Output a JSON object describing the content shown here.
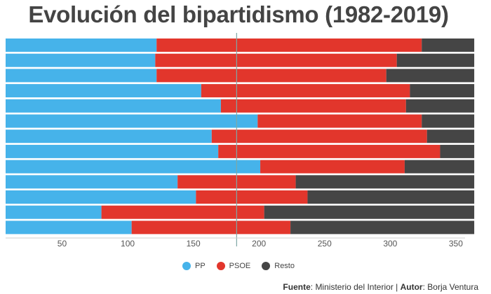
{
  "colors": {
    "pp": "#46b3ea",
    "psoe": "#e2362c",
    "resto": "#454545",
    "midline": "#7fa7a6"
  },
  "chart_data": {
    "type": "bar",
    "orientation": "horizontal",
    "stacked": true,
    "title": "Evolución del bipartidismo (1982-2019)",
    "xlim": [
      7,
      357
    ],
    "x_ticks": [
      50,
      100,
      150,
      200,
      250,
      300,
      350
    ],
    "reference_line": 183,
    "grid": false,
    "legend_position": "bottom-center",
    "series": [
      {
        "name": "PP",
        "values": [
          115,
          114,
          115,
          149,
          164,
          192,
          157,
          162,
          194,
          131,
          145,
          73,
          96
        ]
      },
      {
        "name": "PSOE",
        "values": [
          202,
          184,
          175,
          159,
          141,
          125,
          164,
          169,
          110,
          90,
          85,
          124,
          121
        ]
      },
      {
        "name": "Resto",
        "values": [
          40,
          59,
          67,
          49,
          52,
          40,
          36,
          26,
          53,
          136,
          127,
          160,
          140
        ]
      }
    ]
  },
  "source": {
    "label": "Fuente",
    "value": "Ministerio del Interior",
    "author_label": "Autor",
    "author": "Borja Ventura"
  }
}
